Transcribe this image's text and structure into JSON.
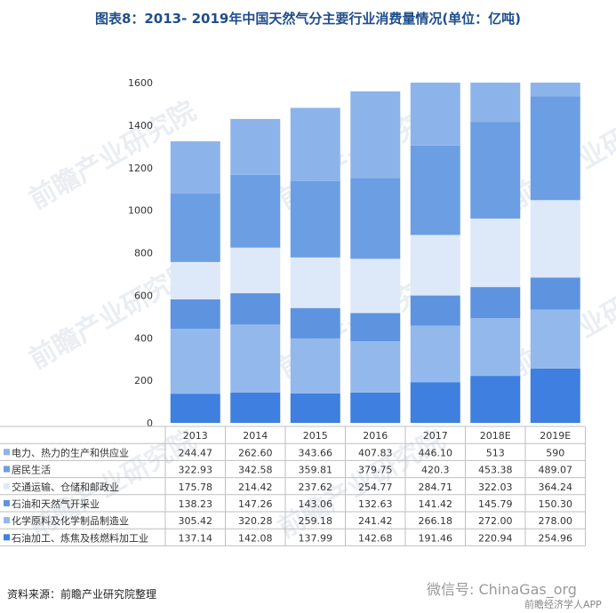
{
  "header": {
    "title": "图表8：2013- 2019年中国天然气分主要行业消费量情况(单位：亿吨)"
  },
  "footer": {
    "source": "资料来源：前瞻产业研究院整理",
    "wechat": "微信号: ChinaGas_org",
    "app": "前瞻经济学人APP"
  },
  "watermark": "前瞻产业研究院",
  "colors": {
    "electric": "#8db4ea",
    "resident": "#6c9ee3",
    "transport": "#dde9f9",
    "oilgas": "#5e93e0",
    "chemical": "#93b8ec",
    "refining": "#3e7fdf"
  },
  "chart_data": {
    "type": "bar",
    "stacked": true,
    "categories": [
      "2013",
      "2014",
      "2015",
      "2016",
      "2017",
      "2018E",
      "2019E"
    ],
    "ylim": [
      0,
      1600
    ],
    "yticks": [
      "0",
      "200",
      "400",
      "600",
      "800",
      "1000",
      "1200",
      "1400",
      "1600"
    ],
    "xlabel": "",
    "ylabel": "",
    "series": [
      {
        "name": "电力、热力的生产和供应业",
        "values": [
          "244.47",
          "262.60",
          "343.66",
          "407.83",
          "446.10",
          "513",
          "590"
        ]
      },
      {
        "name": "居民生活",
        "values": [
          "322.93",
          "342.58",
          "359.81",
          "379.75",
          "420.3",
          "453.38",
          "489.07"
        ]
      },
      {
        "name": "交通运输、仓储和邮政业",
        "values": [
          "175.78",
          "214.42",
          "237.62",
          "254.77",
          "284.71",
          "322.03",
          "364.24"
        ]
      },
      {
        "name": "石油和天然气开采业",
        "values": [
          "138.23",
          "147.26",
          "143.06",
          "132.63",
          "141.42",
          "145.79",
          "150.30"
        ]
      },
      {
        "name": "化学原料及化学制品制造业",
        "values": [
          "305.42",
          "320.28",
          "259.18",
          "241.42",
          "266.18",
          "272.00",
          "278.00"
        ]
      },
      {
        "name": "石油加工、炼焦及核燃料加工业",
        "values": [
          "137.14",
          "142.08",
          "137.99",
          "142.68",
          "191.46",
          "220.94",
          "254.96"
        ]
      }
    ]
  }
}
